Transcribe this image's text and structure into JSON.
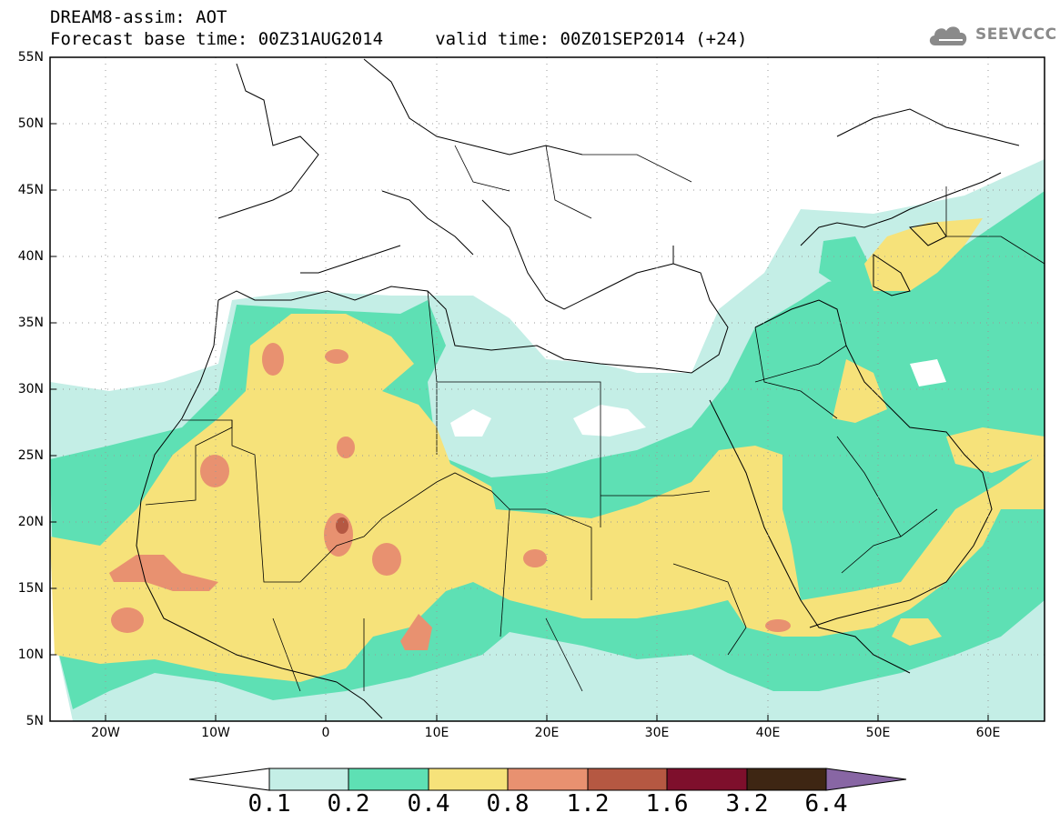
{
  "title_line1": "DREAM8-assim: AOT",
  "title_line2": "Forecast base time: 00Z31AUG2014     valid time: 00Z01SEP2014 (+24)",
  "logo": {
    "text": "SEEVCCC",
    "icon": "cloud-icon"
  },
  "map": {
    "lat_labels": [
      "55N",
      "50N",
      "45N",
      "40N",
      "35N",
      "30N",
      "25N",
      "20N",
      "15N",
      "10N",
      "5N"
    ],
    "lon_labels": [
      "20W",
      "10W",
      "0",
      "10E",
      "20E",
      "30E",
      "40E",
      "50E",
      "60E"
    ]
  },
  "colorbar": {
    "colors": [
      "#ffffff",
      "#c4eee6",
      "#5ee0b4",
      "#f6e27a",
      "#e89170",
      "#b55842",
      "#7e0f2c",
      "#3e2613",
      "#8866a4"
    ],
    "labels": [
      "0.1",
      "0.2",
      "0.4",
      "0.8",
      "1.2",
      "1.6",
      "3.2",
      "6.4"
    ]
  },
  "dust_colors": {
    "c1": "#c4eee6",
    "c2": "#5ee0b4",
    "c3": "#f6e27a",
    "c4": "#e89170",
    "c5": "#b55842"
  }
}
